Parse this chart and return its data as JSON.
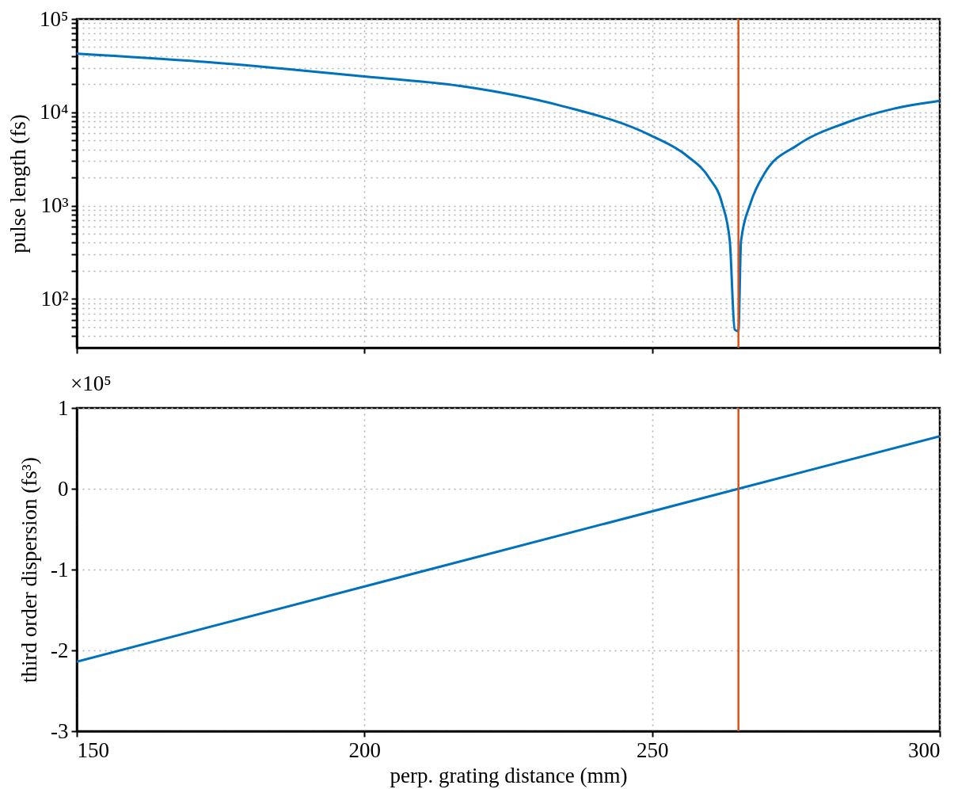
{
  "chart_data": [
    {
      "type": "line",
      "ylabel": "pulse length (fs)",
      "log": true,
      "grid": true,
      "tick_labels": "y",
      "xlim": [
        150,
        300
      ],
      "xticks": [
        150,
        200,
        250,
        300
      ],
      "ylim": [
        30,
        100000
      ],
      "yticks": [
        {
          "value": 40,
          "label": null
        },
        {
          "value": 50,
          "label": null
        },
        {
          "value": 60,
          "label": null
        },
        {
          "value": 70,
          "label": null
        },
        {
          "value": 80,
          "label": null
        },
        {
          "value": 90,
          "label": null
        },
        {
          "value": 100,
          "label": "10²"
        },
        {
          "value": 200,
          "label": null
        },
        {
          "value": 300,
          "label": null
        },
        {
          "value": 400,
          "label": null
        },
        {
          "value": 500,
          "label": null
        },
        {
          "value": 600,
          "label": null
        },
        {
          "value": 700,
          "label": null
        },
        {
          "value": 800,
          "label": null
        },
        {
          "value": 900,
          "label": null
        },
        {
          "value": 1000,
          "label": "10³"
        },
        {
          "value": 2000,
          "label": null
        },
        {
          "value": 3000,
          "label": null
        },
        {
          "value": 4000,
          "label": null
        },
        {
          "value": 5000,
          "label": null
        },
        {
          "value": 6000,
          "label": null
        },
        {
          "value": 7000,
          "label": null
        },
        {
          "value": 8000,
          "label": null
        },
        {
          "value": 9000,
          "label": null
        },
        {
          "value": 10000,
          "label": "10⁴"
        },
        {
          "value": 20000,
          "label": null
        },
        {
          "value": 30000,
          "label": null
        },
        {
          "value": 40000,
          "label": null
        },
        {
          "value": 50000,
          "label": null
        },
        {
          "value": 60000,
          "label": null
        },
        {
          "value": 70000,
          "label": null
        },
        {
          "value": 80000,
          "label": null
        },
        {
          "value": 90000,
          "label": null
        },
        {
          "value": 100000,
          "label": "10⁵"
        }
      ],
      "series": [
        {
          "color": "#0072bd",
          "x": [
            150,
            175,
            200,
            217.6,
            234.1,
            249.8,
            256.1,
            259.95,
            262.15,
            263.5,
            264.35,
            265,
            265.45,
            267.1,
            269.55,
            275.3,
            283.6,
            291.9,
            300
          ],
          "values": [
            42500,
            33700,
            24200,
            18800,
            11800,
            5640,
            3400,
            1970,
            1060,
            417,
            47,
            45,
            417,
            1060,
            2220,
            4470,
            7690,
            10900,
            13300
          ]
        }
      ],
      "ref_lines": [
        {
          "axis": "x",
          "value": 265,
          "color": "#d95319"
        }
      ]
    },
    {
      "type": "line",
      "xlabel": "perp. grating distance (mm)",
      "ylabel": "third order dispersion (fs³)",
      "grid": true,
      "annotations": [
        "×10⁵"
      ],
      "xlim": [
        150,
        300
      ],
      "xticks": [
        150,
        200,
        250,
        300
      ],
      "ylim": [
        -3,
        1
      ],
      "yticks": [
        -3,
        -2,
        -1,
        0,
        1
      ],
      "series": [
        {
          "color": "#0072bd",
          "x": [
            150,
            265,
            300
          ],
          "values": [
            -2.14,
            0,
            0.65
          ]
        }
      ],
      "ref_lines": [
        {
          "axis": "x",
          "value": 265,
          "color": "#d95319"
        }
      ]
    }
  ]
}
